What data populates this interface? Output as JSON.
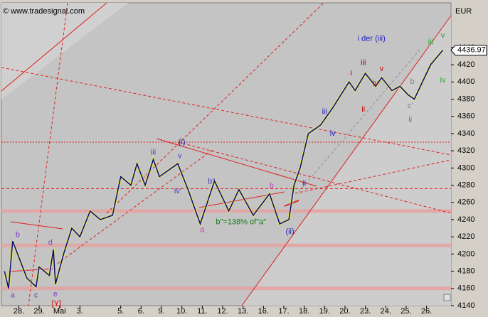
{
  "chart_data": {
    "type": "line",
    "watermark": "© www.tradesignal.com",
    "currency": "EUR",
    "last_value": 4436.97,
    "xlim": [
      -0.85,
      21.2
    ],
    "xticks": [
      {
        "value": 0,
        "label": "28."
      },
      {
        "value": 1,
        "label": "29."
      },
      {
        "value": 2,
        "label": "Mai"
      },
      {
        "value": 3,
        "label": "3."
      },
      {
        "value": 5,
        "label": "5."
      },
      {
        "value": 6,
        "label": "6."
      },
      {
        "value": 7,
        "label": "9."
      },
      {
        "value": 8,
        "label": "10."
      },
      {
        "value": 9,
        "label": "11."
      },
      {
        "value": 10,
        "label": "12."
      },
      {
        "value": 11,
        "label": "13."
      },
      {
        "value": 12,
        "label": "16."
      },
      {
        "value": 13,
        "label": "17."
      },
      {
        "value": 14,
        "label": "18."
      },
      {
        "value": 15,
        "label": "19."
      },
      {
        "value": 16,
        "label": "20."
      },
      {
        "value": 17,
        "label": "23."
      },
      {
        "value": 18,
        "label": "24."
      },
      {
        "value": 19,
        "label": "25."
      },
      {
        "value": 20,
        "label": "26."
      }
    ],
    "ylim": [
      4140,
      4492
    ],
    "yticks": [
      4140,
      4160,
      4180,
      4200,
      4220,
      4240,
      4260,
      4280,
      4300,
      4320,
      4340,
      4360,
      4380,
      4400,
      4420,
      4440
    ],
    "levels": [
      4160,
      4210,
      4250,
      4276,
      4330
    ],
    "series": [
      {
        "name": "DAX",
        "color": "#101080",
        "x": [
          -0.7,
          -0.5,
          -0.3,
          0.4,
          0.85,
          1.0,
          1.5,
          1.7,
          1.8,
          2.2,
          2.6,
          3.0,
          3.5,
          4.0,
          4.6,
          5.0,
          5.5,
          5.8,
          6.2,
          6.6,
          6.9,
          7.8,
          8.3,
          8.9,
          9.6,
          10.3,
          10.8,
          11.5,
          12.3,
          12.8,
          13.25,
          13.5,
          13.8,
          14.2,
          14.8,
          15.4,
          16.2,
          16.5,
          17.0,
          17.5,
          17.8,
          18.3,
          18.7,
          19.1,
          19.4,
          19.7,
          20.2,
          20.8
        ],
        "values": [
          4180,
          4160,
          4215,
          4172,
          4162,
          4185,
          4175,
          4205,
          4165,
          4200,
          4230,
          4220,
          4250,
          4240,
          4245,
          4290,
          4280,
          4305,
          4280,
          4310,
          4290,
          4305,
          4275,
          4235,
          4285,
          4250,
          4275,
          4245,
          4270,
          4235,
          4240,
          4280,
          4300,
          4340,
          4350,
          4370,
          4400,
          4390,
          4410,
          4395,
          4405,
          4390,
          4395,
          4385,
          4380,
          4395,
          4420,
          4437
        ]
      }
    ],
    "annotations": [
      "a",
      "b",
      "c",
      "d",
      "e",
      "[Y]",
      "iii",
      "iv'",
      "v",
      "(i)",
      "a",
      "b\"",
      "b",
      "(ii)",
      "b\"=138% of\"a\"",
      "ii",
      "iii",
      "iv",
      "i",
      "iii",
      "ii",
      "iv",
      "v",
      "i der (iii)",
      "b",
      "c'",
      "ii",
      "iii",
      "v",
      "iv"
    ]
  }
}
